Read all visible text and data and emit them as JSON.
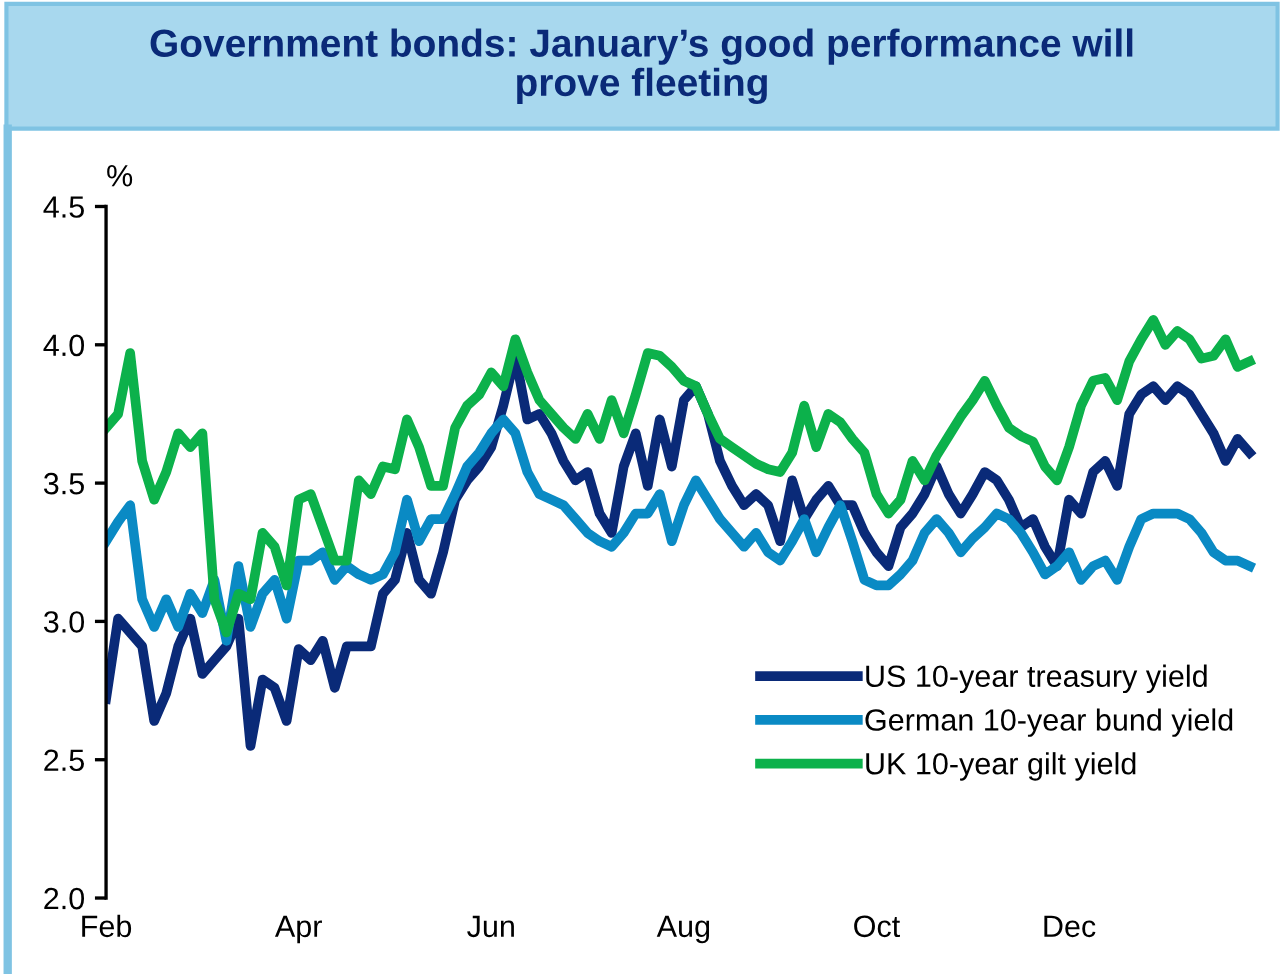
{
  "chart_data": {
    "type": "line",
    "title": "Government bonds: January’s good performance will\nprove fleeting",
    "ylabel": "%",
    "categories": [
      "Feb",
      null,
      null,
      null,
      null,
      null,
      null,
      null,
      null,
      null,
      null,
      null,
      null,
      null,
      null,
      null,
      "Apr",
      null,
      null,
      null,
      null,
      null,
      null,
      null,
      null,
      null,
      null,
      null,
      null,
      null,
      null,
      null,
      "Jun",
      null,
      null,
      null,
      null,
      null,
      null,
      null,
      null,
      null,
      null,
      null,
      null,
      null,
      null,
      null,
      "Aug",
      null,
      null,
      null,
      null,
      null,
      null,
      null,
      null,
      null,
      null,
      null,
      null,
      null,
      null,
      null,
      "Oct",
      null,
      null,
      null,
      null,
      null,
      null,
      null,
      null,
      null,
      null,
      null,
      null,
      null,
      null,
      null,
      "Dec",
      null,
      null,
      null,
      null,
      null,
      null,
      null,
      null,
      null,
      null,
      null,
      null,
      null,
      null,
      null
    ],
    "ylim": [
      2.0,
      4.5
    ],
    "yticks": [
      {
        "value": 2.0,
        "label": "2.0"
      },
      {
        "value": 2.5,
        "label": "2.5"
      },
      {
        "value": 3.0,
        "label": "3.0"
      },
      {
        "value": 3.5,
        "label": "3.5"
      },
      {
        "value": 4.0,
        "label": "4.0"
      },
      {
        "value": 4.5,
        "label": "4.5"
      }
    ],
    "grid": false,
    "legend": "bottom right",
    "marker": "none",
    "line_style": "solid",
    "series": [
      {
        "name": "US 10-year treasury yield",
        "color": "#0a2a78",
        "values": [
          2.72,
          3.01,
          2.96,
          2.91,
          2.64,
          2.74,
          2.91,
          3.01,
          2.81,
          2.86,
          2.91,
          3.01,
          2.55,
          2.79,
          2.76,
          2.64,
          2.9,
          2.86,
          2.93,
          2.76,
          2.91,
          2.91,
          2.91,
          3.1,
          3.15,
          3.32,
          3.15,
          3.1,
          3.25,
          3.44,
          3.51,
          3.56,
          3.63,
          3.78,
          3.96,
          3.73,
          3.75,
          3.68,
          3.58,
          3.51,
          3.54,
          3.39,
          3.32,
          3.56,
          3.68,
          3.49,
          3.73,
          3.56,
          3.8,
          3.85,
          3.75,
          3.58,
          3.49,
          3.42,
          3.46,
          3.42,
          3.29,
          3.51,
          3.37,
          3.44,
          3.49,
          3.42,
          3.42,
          3.32,
          3.25,
          3.2,
          3.34,
          3.39,
          3.46,
          3.56,
          3.46,
          3.39,
          3.46,
          3.54,
          3.51,
          3.44,
          3.34,
          3.37,
          3.27,
          3.2,
          3.44,
          3.39,
          3.54,
          3.58,
          3.49,
          3.75,
          3.82,
          3.85,
          3.8,
          3.85,
          3.82,
          3.75,
          3.68,
          3.58,
          3.66,
          3.61
        ]
      },
      {
        "name": "German 10-year bund yield",
        "color": "#0a8ac4",
        "values": [
          3.29,
          3.36,
          3.42,
          3.08,
          2.98,
          3.08,
          2.98,
          3.1,
          3.03,
          3.15,
          2.93,
          3.2,
          2.98,
          3.1,
          3.15,
          3.01,
          3.22,
          3.22,
          3.25,
          3.15,
          3.2,
          3.17,
          3.15,
          3.17,
          3.25,
          3.44,
          3.29,
          3.37,
          3.37,
          3.46,
          3.56,
          3.61,
          3.68,
          3.73,
          3.68,
          3.54,
          3.46,
          3.44,
          3.42,
          3.37,
          3.32,
          3.29,
          3.27,
          3.32,
          3.39,
          3.39,
          3.46,
          3.29,
          3.42,
          3.51,
          3.44,
          3.37,
          3.32,
          3.27,
          3.32,
          3.25,
          3.22,
          3.29,
          3.37,
          3.25,
          3.34,
          3.42,
          3.29,
          3.15,
          3.13,
          3.13,
          3.17,
          3.22,
          3.32,
          3.37,
          3.32,
          3.25,
          3.3,
          3.34,
          3.39,
          3.37,
          3.32,
          3.25,
          3.17,
          3.2,
          3.25,
          3.15,
          3.2,
          3.22,
          3.15,
          3.27,
          3.37,
          3.39,
          3.39,
          3.39,
          3.37,
          3.32,
          3.25,
          3.22,
          3.22,
          3.2
        ]
      },
      {
        "name": "UK 10-year gilt yield",
        "color": "#0cb14b",
        "values": [
          3.7,
          3.75,
          3.97,
          3.58,
          3.44,
          3.54,
          3.68,
          3.63,
          3.68,
          3.08,
          2.96,
          3.1,
          3.08,
          3.32,
          3.27,
          3.13,
          3.44,
          3.46,
          3.34,
          3.22,
          3.22,
          3.51,
          3.46,
          3.56,
          3.55,
          3.73,
          3.63,
          3.49,
          3.49,
          3.7,
          3.78,
          3.82,
          3.9,
          3.85,
          4.02,
          3.9,
          3.8,
          3.75,
          3.7,
          3.66,
          3.75,
          3.66,
          3.8,
          3.68,
          3.82,
          3.97,
          3.96,
          3.92,
          3.87,
          3.85,
          3.75,
          3.66,
          3.63,
          3.6,
          3.57,
          3.55,
          3.54,
          3.61,
          3.78,
          3.63,
          3.75,
          3.72,
          3.66,
          3.61,
          3.46,
          3.39,
          3.44,
          3.58,
          3.51,
          3.6,
          3.67,
          3.74,
          3.8,
          3.87,
          3.78,
          3.7,
          3.67,
          3.65,
          3.56,
          3.51,
          3.63,
          3.78,
          3.87,
          3.88,
          3.8,
          3.94,
          4.02,
          4.09,
          4.0,
          4.05,
          4.02,
          3.95,
          3.96,
          4.02,
          3.92,
          3.94
        ]
      }
    ]
  }
}
